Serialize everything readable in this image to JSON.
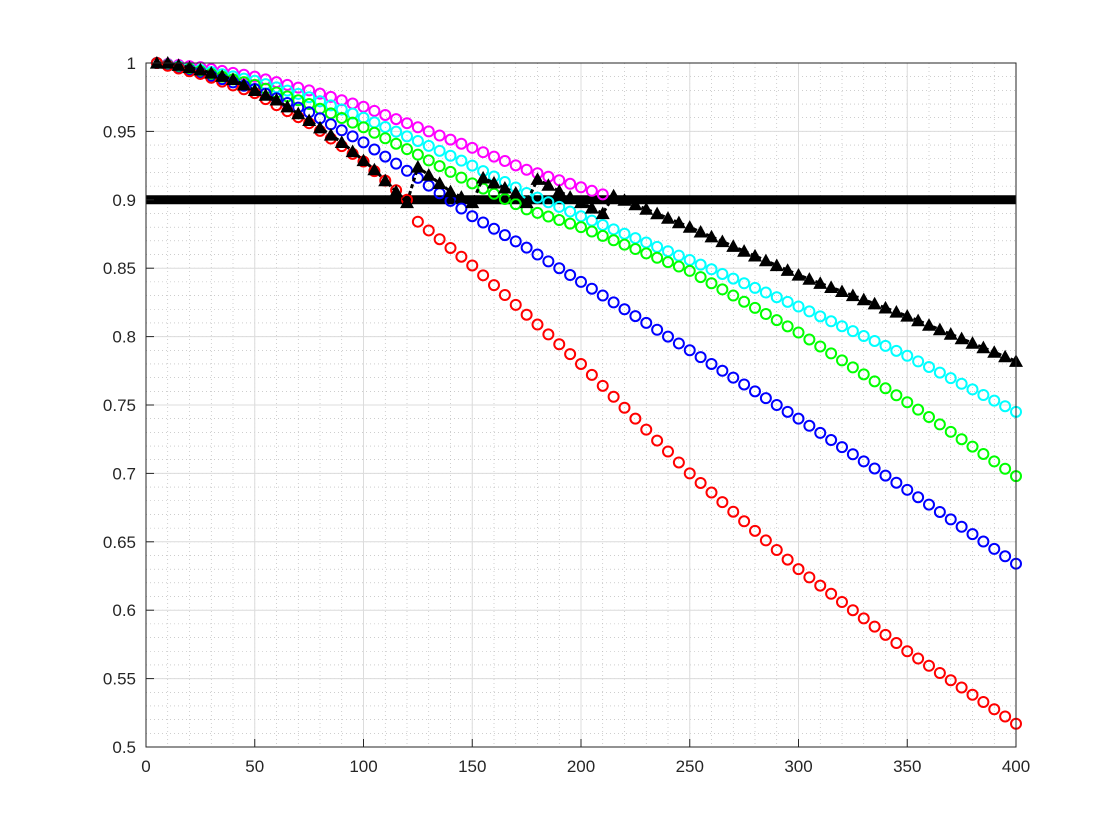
{
  "chart_data": {
    "type": "scatter",
    "title": "",
    "xlabel": "",
    "ylabel": "",
    "xlim": [
      0,
      400
    ],
    "ylim": [
      0.5,
      1.0
    ],
    "grid": true,
    "minor_grid": true,
    "xticks": [
      0,
      50,
      100,
      150,
      200,
      250,
      300,
      350,
      400
    ],
    "xtick_labels": [
      "0",
      "50",
      "100",
      "150",
      "200",
      "250",
      "300",
      "350",
      "400"
    ],
    "yticks": [
      0.5,
      0.55,
      0.6,
      0.65,
      0.7,
      0.75,
      0.8,
      0.85,
      0.9,
      0.95,
      1.0
    ],
    "ytick_labels": [
      "0.5",
      "0.55",
      "0.6",
      "0.65",
      "0.7",
      "0.75",
      "0.8",
      "0.85",
      "0.9",
      "0.95",
      "1"
    ],
    "threshold": {
      "y": 0.9,
      "color": "#000000"
    },
    "series": [
      {
        "color": "#ff00ff",
        "marker": "circle",
        "points": [
          [
            5,
            1.0
          ],
          [
            25,
            0.997
          ],
          [
            50,
            0.99
          ],
          [
            75,
            0.98
          ],
          [
            100,
            0.968
          ],
          [
            125,
            0.953
          ],
          [
            150,
            0.938
          ],
          [
            175,
            0.922
          ],
          [
            210,
            0.904
          ]
        ]
      },
      {
        "color": "#00ffff",
        "marker": "circle",
        "points": [
          [
            5,
            1.0
          ],
          [
            25,
            0.995
          ],
          [
            50,
            0.987
          ],
          [
            75,
            0.975
          ],
          [
            100,
            0.96
          ],
          [
            125,
            0.943
          ],
          [
            150,
            0.925
          ],
          [
            175,
            0.905
          ],
          [
            200,
            0.888
          ],
          [
            250,
            0.856
          ],
          [
            300,
            0.822
          ],
          [
            350,
            0.786
          ],
          [
            400,
            0.745
          ]
        ]
      },
      {
        "color": "#00ff00",
        "marker": "circle",
        "points": [
          [
            5,
            1.0
          ],
          [
            25,
            0.994
          ],
          [
            50,
            0.984
          ],
          [
            75,
            0.97
          ],
          [
            100,
            0.953
          ],
          [
            125,
            0.933
          ],
          [
            150,
            0.912
          ],
          [
            175,
            0.893
          ],
          [
            200,
            0.88
          ],
          [
            250,
            0.848
          ],
          [
            300,
            0.803
          ],
          [
            350,
            0.752
          ],
          [
            400,
            0.698
          ]
        ]
      },
      {
        "color": "#0000ff",
        "marker": "circle",
        "points": [
          [
            5,
            1.0
          ],
          [
            25,
            0.993
          ],
          [
            50,
            0.981
          ],
          [
            75,
            0.964
          ],
          [
            100,
            0.942
          ],
          [
            125,
            0.916
          ],
          [
            150,
            0.888
          ],
          [
            175,
            0.865
          ],
          [
            200,
            0.84
          ],
          [
            250,
            0.79
          ],
          [
            300,
            0.74
          ],
          [
            350,
            0.688
          ],
          [
            400,
            0.634
          ]
        ]
      },
      {
        "color": "#ff0000",
        "marker": "circle",
        "points": [
          [
            5,
            1.0
          ],
          [
            25,
            0.992
          ],
          [
            50,
            0.978
          ],
          [
            75,
            0.956
          ],
          [
            100,
            0.928
          ],
          [
            120,
            0.9
          ],
          [
            125,
            0.884
          ],
          [
            150,
            0.852
          ],
          [
            200,
            0.78
          ],
          [
            250,
            0.7
          ],
          [
            300,
            0.63
          ],
          [
            350,
            0.57
          ],
          [
            400,
            0.517
          ]
        ]
      },
      {
        "color": "#000000",
        "marker": "triangle",
        "dashed": true,
        "points": [
          [
            5,
            1.0
          ],
          [
            10,
            1.0
          ],
          [
            25,
            0.995
          ],
          [
            40,
            0.988
          ],
          [
            50,
            0.98
          ],
          [
            60,
            0.973
          ],
          [
            75,
            0.958
          ],
          [
            90,
            0.942
          ],
          [
            105,
            0.922
          ],
          [
            120,
            0.898
          ],
          [
            125,
            0.924
          ],
          [
            140,
            0.906
          ],
          [
            150,
            0.898
          ],
          [
            155,
            0.916
          ],
          [
            170,
            0.905
          ],
          [
            175,
            0.898
          ],
          [
            180,
            0.915
          ],
          [
            195,
            0.902
          ],
          [
            210,
            0.89
          ],
          [
            215,
            0.903
          ],
          [
            250,
            0.88
          ],
          [
            300,
            0.845
          ],
          [
            350,
            0.815
          ],
          [
            400,
            0.782
          ]
        ]
      }
    ]
  }
}
